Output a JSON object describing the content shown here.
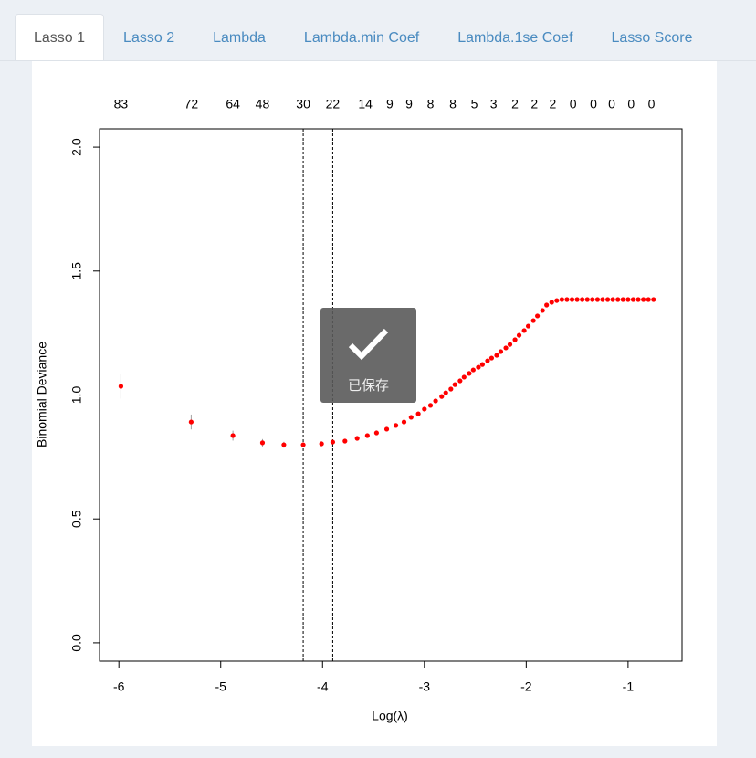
{
  "tabs": [
    "Lasso 1",
    "Lasso 2",
    "Lambda",
    "Lambda.min Coef",
    "Lambda.1se Coef",
    "Lasso Score"
  ],
  "active_tab": 0,
  "toast": {
    "text": "已保存"
  },
  "chart_data": {
    "type": "scatter",
    "xlabel": "Log(λ)",
    "ylabel": "Binomial Deviance",
    "color": "#ff0000",
    "error_color": "#a0a0a0",
    "xlim": [
      -6.19,
      -0.47
    ],
    "ylim": [
      -0.074,
      2.074
    ],
    "xticks": [
      -6,
      -5,
      -4,
      -3,
      -2,
      -1
    ],
    "yticks": [
      {
        "value": 0,
        "label": "0.0"
      },
      0.5,
      {
        "value": 1,
        "label": "1.0"
      },
      1.5,
      {
        "value": 2,
        "label": "2.0"
      }
    ],
    "top_ticks": [
      {
        "value": -5.98,
        "label": "83"
      },
      {
        "value": -5.29,
        "label": "72"
      },
      {
        "value": -4.88,
        "label": "64"
      },
      {
        "value": -4.59,
        "label": "48"
      },
      {
        "value": -4.19,
        "label": "30"
      },
      {
        "value": -3.9,
        "label": "22"
      },
      {
        "value": -3.58,
        "label": "14"
      },
      {
        "value": -3.34,
        "label": "9"
      },
      {
        "value": -3.15,
        "label": "9"
      },
      {
        "value": -2.94,
        "label": "8"
      },
      {
        "value": -2.72,
        "label": "8"
      },
      {
        "value": -2.51,
        "label": "5"
      },
      {
        "value": -2.32,
        "label": "3"
      },
      {
        "value": -2.11,
        "label": "2"
      },
      {
        "value": -1.92,
        "label": "2"
      },
      {
        "value": -1.74,
        "label": "2"
      },
      {
        "value": -1.54,
        "label": "0"
      },
      {
        "value": -1.34,
        "label": "0"
      },
      {
        "value": -1.16,
        "label": "0"
      },
      {
        "value": -0.97,
        "label": "0"
      },
      {
        "value": -0.77,
        "label": "0"
      }
    ],
    "vlines": [
      -4.19,
      -3.9
    ],
    "x": [
      -5.98,
      -5.29,
      -4.88,
      -4.59,
      -4.38,
      -4.19,
      -4.01,
      -3.9,
      -3.78,
      -3.66,
      -3.56,
      -3.47,
      -3.37,
      -3.28,
      -3.2,
      -3.13,
      -3.06,
      -3.0,
      -2.94,
      -2.89,
      -2.83,
      -2.79,
      -2.74,
      -2.7,
      -2.65,
      -2.61,
      -2.56,
      -2.52,
      -2.47,
      -2.43,
      -2.38,
      -2.34,
      -2.29,
      -2.25,
      -2.2,
      -2.16,
      -2.11,
      -2.07,
      -2.02,
      -1.98,
      -1.93,
      -1.89,
      -1.84,
      -1.8,
      -1.75,
      -1.7,
      -1.65,
      -1.6,
      -1.55,
      -1.5,
      -1.45,
      -1.4,
      -1.35,
      -1.3,
      -1.25,
      -1.2,
      -1.15,
      -1.1,
      -1.05,
      -1.0,
      -0.95,
      -0.9,
      -0.85,
      -0.8,
      -0.75
    ],
    "values": [
      1.035,
      0.891,
      0.836,
      0.807,
      0.799,
      0.799,
      0.803,
      0.81,
      0.814,
      0.825,
      0.836,
      0.847,
      0.862,
      0.877,
      0.891,
      0.91,
      0.924,
      0.943,
      0.958,
      0.976,
      0.994,
      1.009,
      1.024,
      1.042,
      1.057,
      1.072,
      1.087,
      1.101,
      1.112,
      1.123,
      1.138,
      1.149,
      1.16,
      1.175,
      1.19,
      1.204,
      1.223,
      1.241,
      1.26,
      1.278,
      1.3,
      1.319,
      1.341,
      1.363,
      1.374,
      1.381,
      1.385,
      1.385,
      1.385,
      1.385,
      1.385,
      1.385,
      1.385,
      1.385,
      1.385,
      1.385,
      1.385,
      1.385,
      1.385,
      1.385,
      1.385,
      1.385,
      1.385,
      1.385,
      1.385
    ],
    "errors": [
      0.05,
      0.03,
      0.02,
      0.015,
      0.012,
      0.01,
      0.01,
      0.008,
      0.006,
      0.005,
      0.005,
      0.005,
      0.005,
      0.005,
      0.005,
      0.005,
      0.005,
      0.005,
      0.005,
      0.005,
      0.005,
      0.005,
      0.005,
      0.005,
      0.005,
      0.005,
      0.005,
      0.005,
      0.005,
      0.005,
      0.005,
      0.005,
      0.005,
      0.005,
      0.005,
      0.005,
      0.005,
      0.005,
      0.005,
      0.005,
      0.005,
      0.005,
      0.005,
      0.005,
      0.005,
      0.005,
      0.005,
      0.005,
      0.005,
      0.005,
      0.005,
      0.005,
      0.005,
      0.005,
      0.005,
      0.005,
      0.005,
      0.005,
      0.005,
      0.005,
      0.005,
      0.005,
      0.005,
      0.005,
      0.005
    ]
  }
}
